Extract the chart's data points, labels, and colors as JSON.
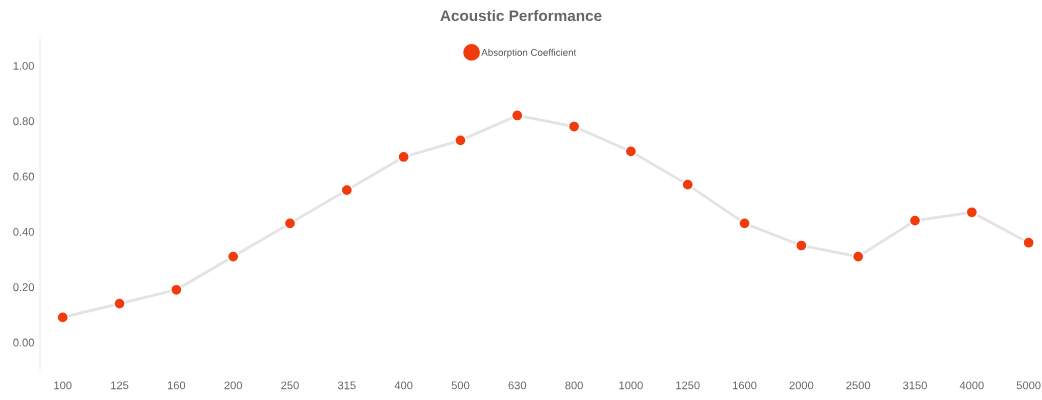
{
  "chart_data": {
    "type": "line",
    "title": "Acoustic Performance",
    "categories": [
      "100",
      "125",
      "160",
      "200",
      "250",
      "315",
      "400",
      "500",
      "630",
      "800",
      "1000",
      "1250",
      "1600",
      "2000",
      "2500",
      "3150",
      "4000",
      "5000"
    ],
    "series": [
      {
        "name": "Absorption Coefficient",
        "color": "#f03c0c",
        "values": [
          0.09,
          0.14,
          0.19,
          0.31,
          0.43,
          0.55,
          0.67,
          0.73,
          0.82,
          0.78,
          0.69,
          0.57,
          0.43,
          0.35,
          0.31,
          0.44,
          0.47,
          0.36
        ]
      }
    ],
    "ylim": [
      -0.1,
      1.1
    ],
    "yticks": [
      {
        "value": 0,
        "label": "0.00"
      },
      {
        "value": 0.2,
        "label": "0.20"
      },
      {
        "value": 0.4,
        "label": "0.40"
      },
      {
        "value": 0.6,
        "label": "0.60"
      },
      {
        "value": 0.8,
        "label": "0.80"
      },
      {
        "value": 1,
        "label": "1.00"
      }
    ],
    "grid": false,
    "legend": "top",
    "marker": "circle",
    "line_style": "solid"
  }
}
